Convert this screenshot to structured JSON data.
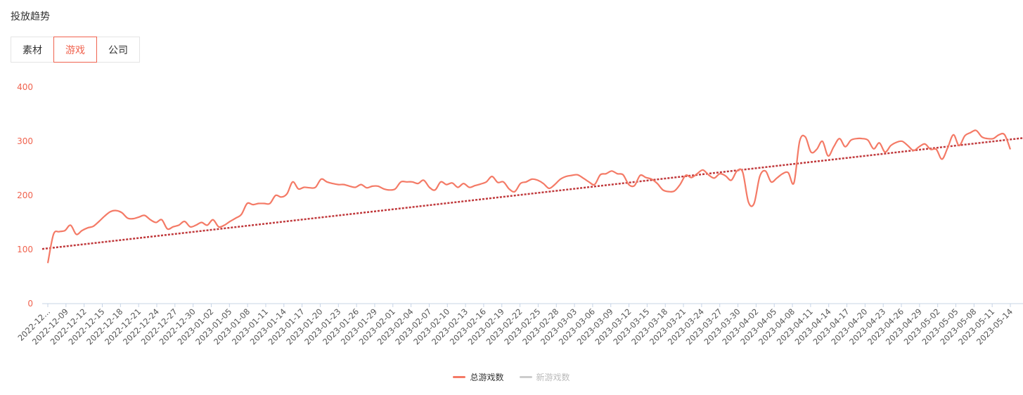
{
  "header": {
    "title": "投放趋势"
  },
  "tabs": [
    {
      "label": "素材",
      "active": false
    },
    {
      "label": "游戏",
      "active": true
    },
    {
      "label": "公司",
      "active": false
    }
  ],
  "colors": {
    "accent": "#f0634f",
    "series_total": "#f47a66",
    "trend": "#c0393c",
    "series_new_inactive": "#cccccc",
    "axis_label": "#f0634f",
    "x_label": "#555555",
    "axis_line": "#c7d4e6"
  },
  "chart_data": {
    "type": "line",
    "ylim": [
      0,
      400
    ],
    "y_ticks": [
      0,
      100,
      200,
      300,
      400
    ],
    "grid": false,
    "legend_position": "bottom-center",
    "x_tick_labels": [
      "2022-12...",
      "2022-12-09",
      "2022-12-12",
      "2022-12-15",
      "2022-12-18",
      "2022-12-21",
      "2022-12-24",
      "2022-12-27",
      "2022-12-30",
      "2023-01-02",
      "2023-01-05",
      "2023-01-08",
      "2023-01-11",
      "2023-01-14",
      "2023-01-17",
      "2023-01-20",
      "2023-01-23",
      "2023-01-26",
      "2023-01-29",
      "2023-02-01",
      "2023-02-04",
      "2023-02-07",
      "2023-02-10",
      "2023-02-13",
      "2023-02-16",
      "2023-02-19",
      "2023-02-22",
      "2023-02-25",
      "2023-02-28",
      "2023-03-03",
      "2023-03-06",
      "2023-03-09",
      "2023-03-12",
      "2023-03-15",
      "2023-03-18",
      "2023-03-21",
      "2023-03-24",
      "2023-03-27",
      "2023-03-30",
      "2023-04-02",
      "2023-04-05",
      "2023-04-08",
      "2023-04-11",
      "2023-04-14",
      "2023-04-17",
      "2023-04-20",
      "2023-04-23",
      "2023-04-26",
      "2023-04-29",
      "2023-05-02",
      "2023-05-05",
      "2023-05-08",
      "2023-05-11",
      "2023-05-14"
    ],
    "series": [
      {
        "name": "总游戏数",
        "visible": true,
        "values": [
          75,
          128,
          133,
          135,
          145,
          128,
          135,
          140,
          143,
          152,
          162,
          170,
          172,
          168,
          158,
          157,
          160,
          163,
          155,
          150,
          155,
          138,
          142,
          145,
          152,
          142,
          145,
          150,
          145,
          155,
          142,
          145,
          152,
          158,
          165,
          185,
          183,
          185,
          185,
          185,
          200,
          197,
          203,
          225,
          212,
          215,
          214,
          215,
          230,
          225,
          222,
          220,
          220,
          217,
          215,
          220,
          214,
          217,
          217,
          212,
          210,
          212,
          225,
          225,
          225,
          222,
          228,
          215,
          210,
          225,
          220,
          223,
          215,
          222,
          215,
          218,
          221,
          225,
          235,
          224,
          225,
          212,
          207,
          222,
          225,
          230,
          228,
          222,
          213,
          220,
          230,
          235,
          237,
          238,
          232,
          225,
          220,
          238,
          240,
          245,
          240,
          238,
          220,
          218,
          237,
          233,
          230,
          222,
          210,
          207,
          208,
          220,
          237,
          233,
          240,
          247,
          238,
          232,
          240,
          236,
          228,
          245,
          243,
          188,
          185,
          235,
          245,
          225,
          232,
          240,
          242,
          223,
          300,
          308,
          280,
          285,
          300,
          273,
          290,
          305,
          290,
          302,
          305,
          305,
          302,
          286,
          297,
          280,
          292,
          298,
          300,
          292,
          283,
          290,
          295,
          285,
          285,
          267,
          288,
          312,
          292,
          310,
          316,
          320,
          308,
          305,
          305,
          312,
          312,
          285
        ]
      },
      {
        "name": "新游戏数",
        "visible": false,
        "values": []
      }
    ],
    "trendline": {
      "style": "dotted",
      "start": 101,
      "end": 306
    }
  }
}
